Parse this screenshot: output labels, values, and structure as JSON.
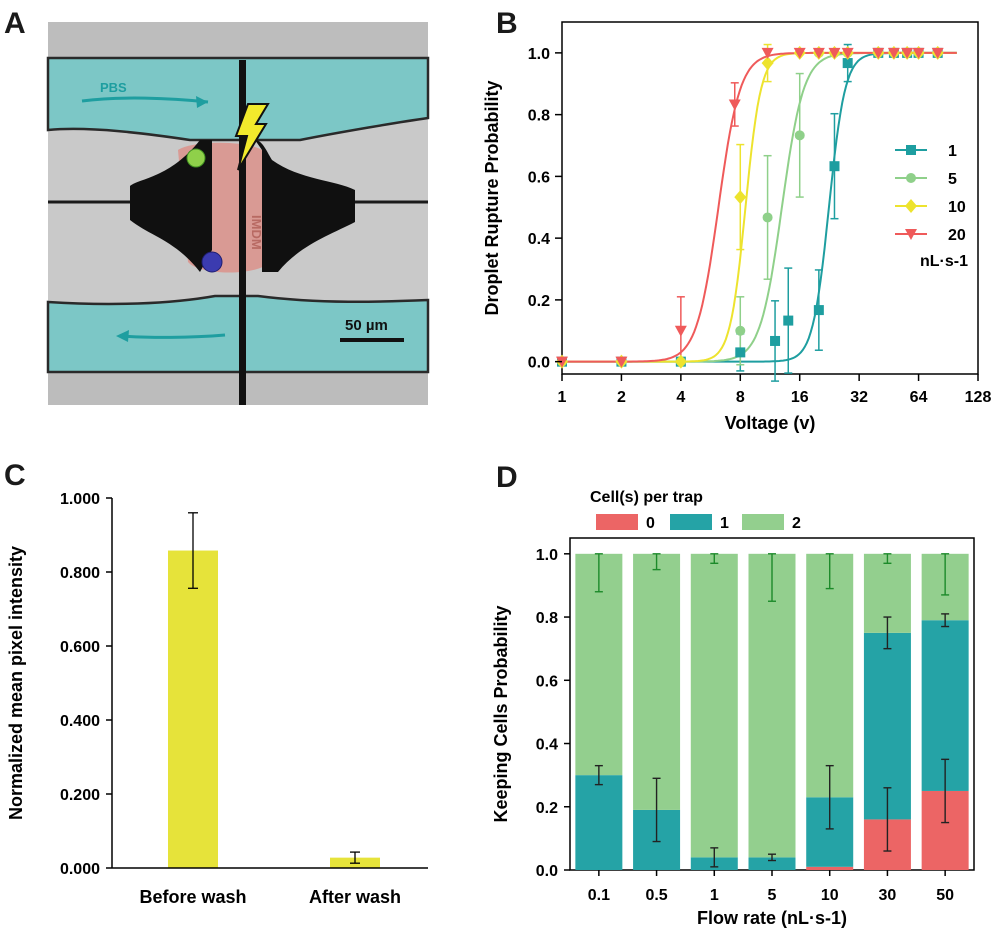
{
  "panels": {
    "a": "A",
    "b": "B",
    "c": "C",
    "d": "D"
  },
  "micrograph": {
    "pbs_label": "PBS",
    "imdm_label": "IMDM",
    "scale_bar_label": "50 µm"
  },
  "colors": {
    "teal": "#1e9ea0",
    "green": "#8fd08a",
    "yellow": "#ede32e",
    "red": "#ef5a5a",
    "bar_yellow": "#e6e33a",
    "d_red": "#ec6565",
    "d_teal": "#25a3a6",
    "d_green": "#93cf8e",
    "d_err_green": "#1c8a2a"
  },
  "chart_data": [
    {
      "panel": "B",
      "type": "scatter",
      "xscale": "log2",
      "x_ticks": [
        1,
        2,
        4,
        8,
        16,
        32,
        64,
        128
      ],
      "x_tick_labels": [
        "1",
        "2",
        "4",
        "8",
        "16",
        "32",
        "64",
        "128"
      ],
      "y_ticks": [
        "0.0",
        "0.2",
        "0.4",
        "0.6",
        "0.8",
        "1.0"
      ],
      "xlim": [
        1,
        128
      ],
      "ylim": [
        -0.04,
        1.1
      ],
      "xlabel": "Voltage (v)",
      "ylabel": "Droplet Rupture Probability",
      "legend_position": "right",
      "legend_unit": "nL·s-1",
      "series": [
        {
          "name": "1",
          "color": "#1e9ea0",
          "marker": "square",
          "x": [
            1,
            2,
            4,
            8,
            12,
            14,
            20,
            24,
            28,
            40,
            48,
            56,
            64,
            80
          ],
          "y": [
            0.0,
            0.0,
            0.0,
            0.03,
            0.067,
            0.133,
            0.167,
            0.633,
            0.967,
            1.0,
            1.0,
            1.0,
            1.0,
            1.0
          ],
          "err": [
            0,
            0,
            0,
            0.06,
            0.13,
            0.17,
            0.13,
            0.17,
            0.06,
            0,
            0,
            0,
            0,
            0
          ],
          "fit_x50": 22.5,
          "fit_slope": 10.6
        },
        {
          "name": "5",
          "color": "#8fd08a",
          "marker": "circle",
          "x": [
            1,
            2,
            4,
            8,
            11,
            16,
            20,
            24,
            28,
            40,
            48,
            56,
            64,
            80
          ],
          "y": [
            0.0,
            0.0,
            0.0,
            0.1,
            0.467,
            0.733,
            1.0,
            1.0,
            1.0,
            1.0,
            1.0,
            1.0,
            1.0,
            1.0
          ],
          "err": [
            0,
            0,
            0,
            0.11,
            0.2,
            0.2,
            0,
            0,
            0,
            0,
            0,
            0,
            0,
            0
          ],
          "fit_x50": 13,
          "fit_slope": 7.9
        },
        {
          "name": "10",
          "color": "#ede32e",
          "marker": "diamond",
          "x": [
            1,
            2,
            4,
            8,
            11,
            16,
            20,
            24,
            28,
            40,
            48,
            56,
            64,
            80
          ],
          "y": [
            0.0,
            0.0,
            0.0,
            0.533,
            0.967,
            1.0,
            1.0,
            1.0,
            1.0,
            1.0,
            1.0,
            1.0,
            1.0,
            1.0
          ],
          "err": [
            0,
            0,
            0,
            0.17,
            0.06,
            0,
            0,
            0,
            0,
            0,
            0,
            0,
            0,
            0
          ],
          "fit_x50": 8.5,
          "fit_slope": 11.1
        },
        {
          "name": "20",
          "color": "#ef5a5a",
          "marker": "triangle-down",
          "x": [
            1,
            2,
            4,
            7.5,
            11,
            16,
            20,
            24,
            28,
            40,
            48,
            56,
            64,
            80
          ],
          "y": [
            0.0,
            0.0,
            0.1,
            0.833,
            1.0,
            1.0,
            1.0,
            1.0,
            1.0,
            1.0,
            1.0,
            1.0,
            1.0,
            1.0
          ],
          "err": [
            0,
            0,
            0.11,
            0.07,
            0,
            0,
            0,
            0,
            0,
            0,
            0,
            0,
            0,
            0
          ],
          "fit_x50": 6.2,
          "fit_slope": 7.9
        }
      ]
    },
    {
      "panel": "C",
      "type": "bar",
      "categories": [
        "Before wash",
        "After wash"
      ],
      "values": [
        0.858,
        0.028
      ],
      "err": [
        0.102,
        0.015
      ],
      "ylim": [
        0,
        1.0
      ],
      "y_ticks": [
        "0.000",
        "0.200",
        "0.400",
        "0.600",
        "0.800",
        "1.000"
      ],
      "xlabel": "",
      "ylabel": "Normalized mean pixel intensity"
    },
    {
      "panel": "D",
      "type": "bar",
      "stacked": true,
      "categories": [
        "0.1",
        "0.5",
        "1",
        "5",
        "10",
        "30",
        "50"
      ],
      "ylim": [
        0,
        1.05
      ],
      "y_ticks": [
        "0.0",
        "0.2",
        "0.4",
        "0.6",
        "0.8",
        "1.0"
      ],
      "xlabel": "Flow rate (nL·s-1)",
      "ylabel": "Keeping Cells Probability",
      "legend_title": "Cell(s) per trap",
      "legend_position": "top",
      "series": [
        {
          "name": "0",
          "color": "#ec6565",
          "values": [
            0,
            0,
            0,
            0,
            0.01,
            0.16,
            0.25
          ],
          "err": [
            0,
            0,
            0,
            0,
            0,
            0.1,
            0.1
          ]
        },
        {
          "name": "1",
          "color": "#25a3a6",
          "values": [
            0.3,
            0.19,
            0.04,
            0.04,
            0.22,
            0.59,
            0.54
          ],
          "err": [
            0.03,
            0.1,
            0.03,
            0.01,
            0.1,
            0.05,
            0.02
          ]
        },
        {
          "name": "2",
          "color": "#93cf8e",
          "values": [
            0.7,
            0.81,
            0.96,
            0.96,
            0.77,
            0.25,
            0.21
          ],
          "err": [
            0.12,
            0.05,
            0.03,
            0.15,
            0.11,
            0.03,
            0.13
          ]
        }
      ]
    }
  ]
}
